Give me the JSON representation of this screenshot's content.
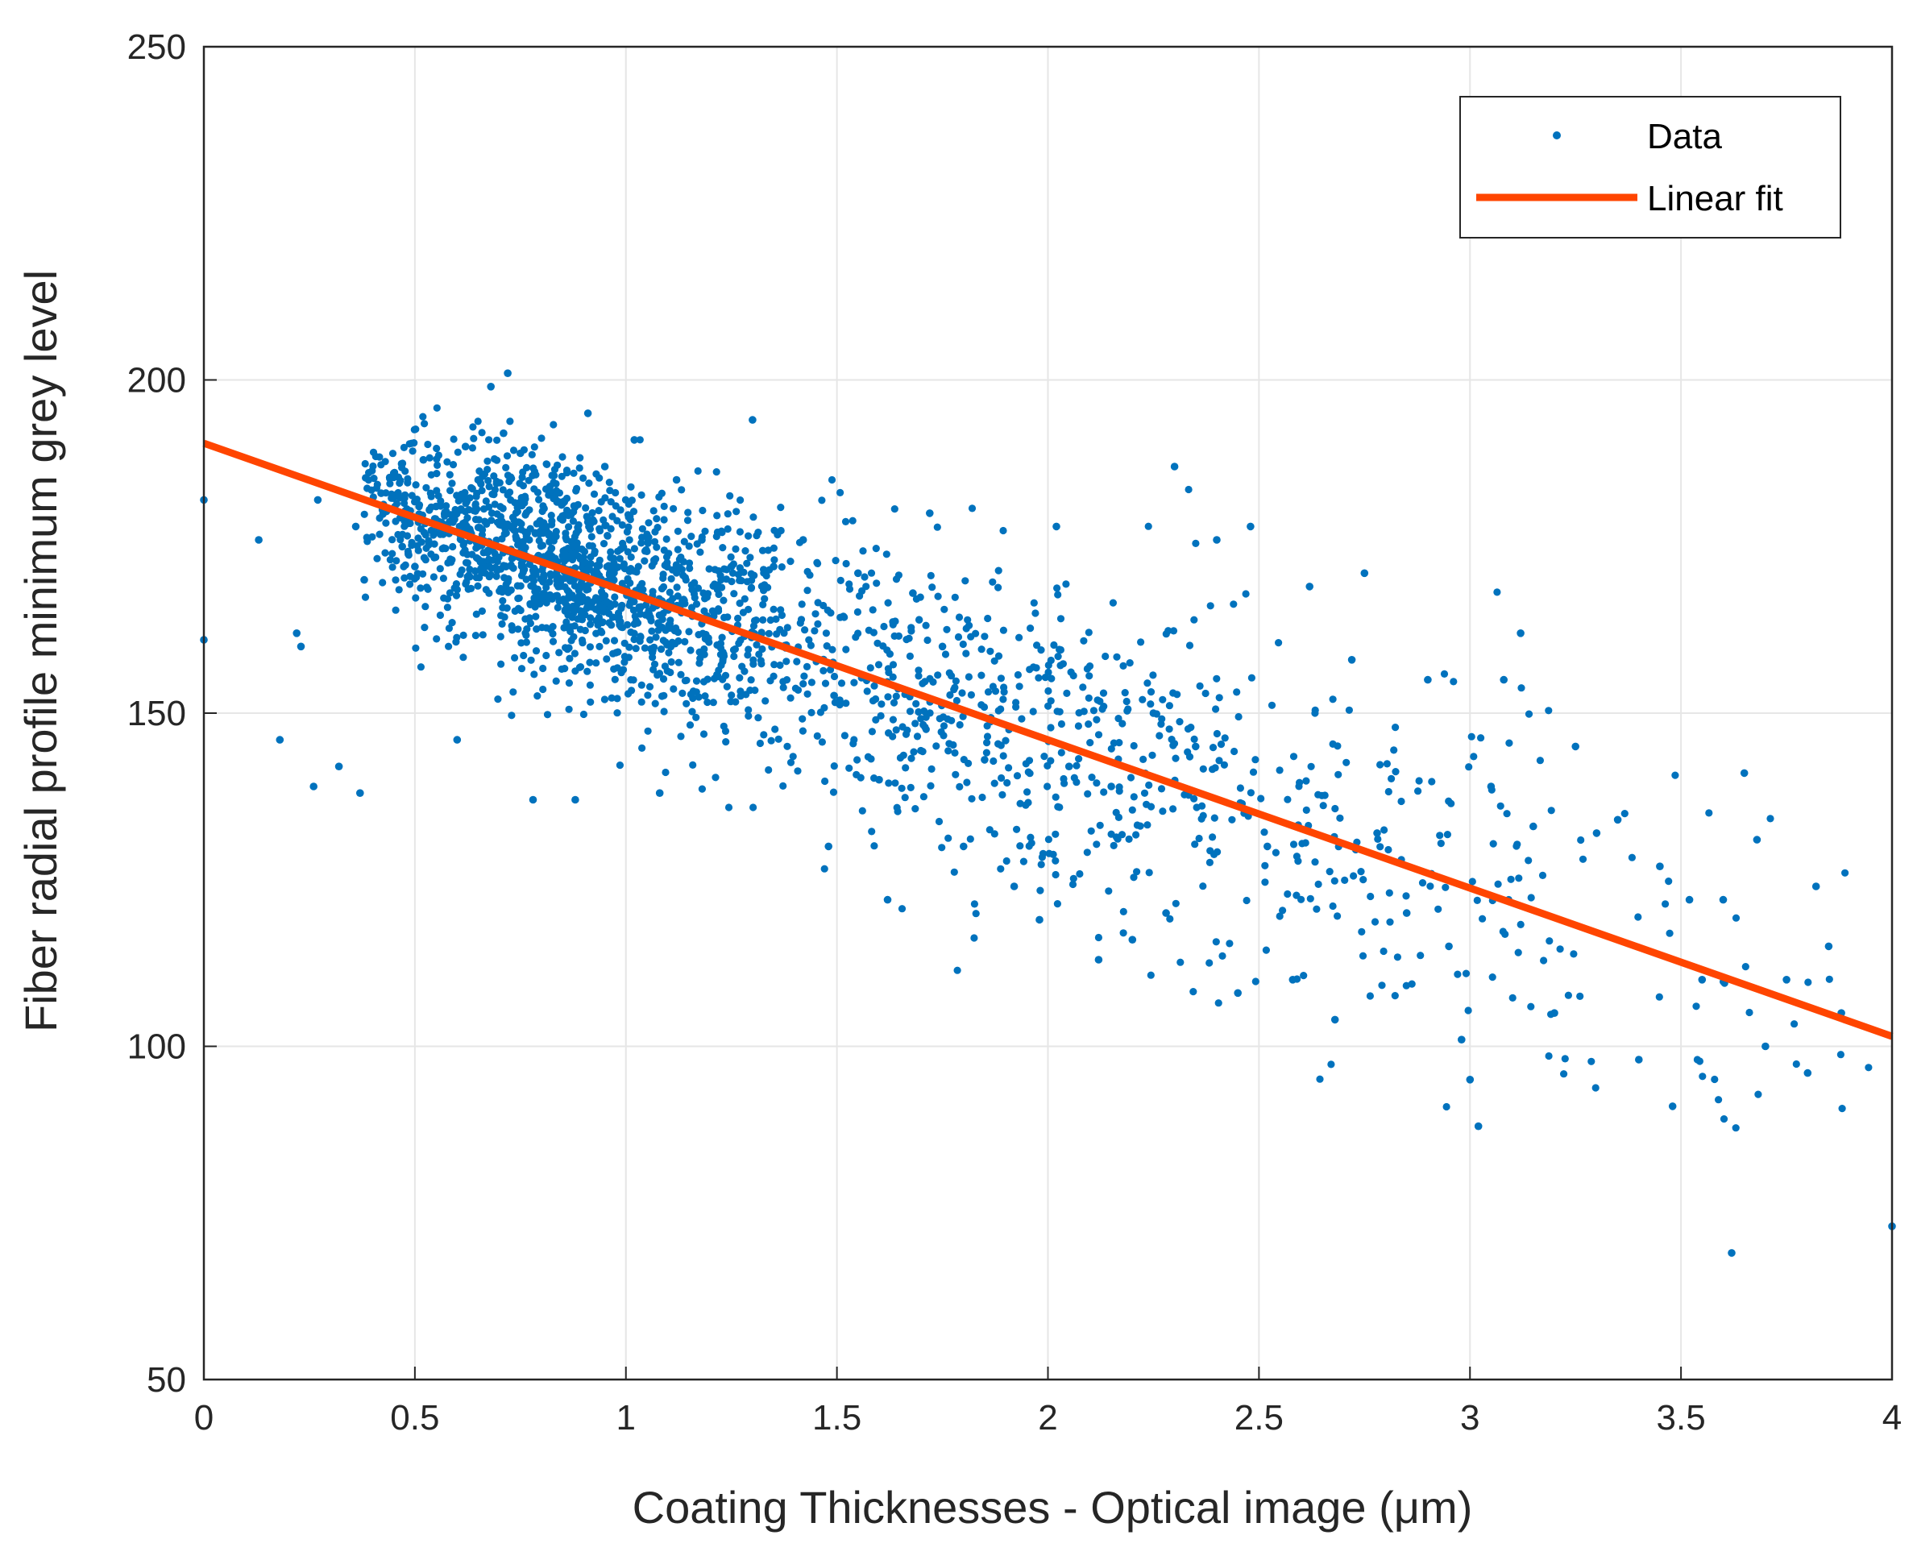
{
  "chart_data": {
    "type": "scatter",
    "title": "",
    "xlabel": "Coating Thicknesses - Optical image",
    "xlabel_unit": "(μm)",
    "ylabel": "Fiber radial profile minimum grey level",
    "xlim": [
      0,
      4
    ],
    "ylim": [
      50,
      250
    ],
    "xticks": [
      0,
      0.5,
      1,
      1.5,
      2,
      2.5,
      3,
      3.5,
      4
    ],
    "xtick_labels": [
      "0",
      "0.5",
      "1",
      "1.5",
      "2",
      "2.5",
      "3",
      "3.5",
      "4"
    ],
    "yticks": [
      50,
      100,
      150,
      200,
      250
    ],
    "ytick_labels": [
      "50",
      "100",
      "150",
      "200",
      "250"
    ],
    "grid": true,
    "legend": {
      "position": "top-right",
      "entries": [
        "Data",
        "Linear fit"
      ]
    },
    "series": [
      {
        "name": "Data",
        "kind": "scatter",
        "color": "#0072BD",
        "points": [
          [
            0,
            182
          ],
          [
            0,
            161
          ],
          [
            0.13,
            176
          ],
          [
            0.18,
            146
          ],
          [
            0.22,
            162
          ],
          [
            0.23,
            160
          ],
          [
            0.26,
            139
          ],
          [
            0.27,
            182
          ],
          [
            0.32,
            142
          ],
          [
            0.37,
            138
          ],
          [
            0.36,
            178
          ],
          [
            0.38,
            170
          ],
          [
            0.42,
            183
          ],
          [
            0.45,
            186
          ],
          [
            0.47,
            175
          ],
          [
            0.5,
            172
          ],
          [
            0.52,
            188
          ],
          [
            0.55,
            181
          ],
          [
            0.6,
            146
          ],
          [
            0.62,
            190
          ],
          [
            0.65,
            185
          ],
          [
            0.68,
            199
          ],
          [
            0.72,
            201
          ],
          [
            0.71,
            192
          ],
          [
            0.75,
            189
          ],
          [
            0.78,
            137
          ],
          [
            0.82,
            184
          ],
          [
            0.85,
            179
          ],
          [
            0.88,
            137
          ],
          [
            0.91,
            195
          ],
          [
            0.95,
            187
          ],
          [
            1.02,
            191
          ],
          [
            1.08,
            138
          ],
          [
            1.12,
            185
          ],
          [
            1.18,
            176
          ],
          [
            1.25,
            172
          ],
          [
            1.3,
            194
          ],
          [
            1.35,
            172
          ],
          [
            1.42,
            176
          ],
          [
            1.48,
            130
          ],
          [
            1.55,
            171
          ],
          [
            1.6,
            140
          ],
          [
            1.62,
            122
          ],
          [
            1.68,
            168
          ],
          [
            1.72,
            180
          ],
          [
            1.75,
            160
          ],
          [
            1.8,
            130
          ],
          [
            1.85,
            143
          ],
          [
            1.92,
            124
          ],
          [
            1.98,
            119
          ],
          [
            2.02,
            178
          ],
          [
            2.05,
            142
          ],
          [
            2.12,
            113
          ],
          [
            2.15,
            139
          ],
          [
            2.2,
            116
          ],
          [
            2.25,
            150
          ],
          [
            2.28,
            120
          ],
          [
            2.3,
            187
          ],
          [
            2.35,
            145
          ],
          [
            2.4,
            176
          ],
          [
            2.45,
            108
          ],
          [
            2.48,
            178
          ],
          [
            2.52,
            130
          ],
          [
            2.58,
            110
          ],
          [
            2.62,
            169
          ],
          [
            2.68,
            104
          ],
          [
            2.72,
            158
          ],
          [
            2.75,
            171
          ],
          [
            2.78,
            132
          ],
          [
            2.85,
            120
          ],
          [
            2.9,
            155
          ],
          [
            2.95,
            115
          ],
          [
            2.98,
            101
          ],
          [
            3.0,
            95
          ],
          [
            3.02,
            88
          ],
          [
            3.05,
            139
          ],
          [
            3.08,
            155
          ],
          [
            3.12,
            162
          ],
          [
            3.15,
            133
          ],
          [
            3.2,
            105
          ],
          [
            3.25,
            145
          ],
          [
            3.3,
            132
          ],
          [
            3.35,
            134
          ],
          [
            3.4,
            98
          ],
          [
            3.45,
            127
          ],
          [
            3.48,
            91
          ],
          [
            3.52,
            122
          ],
          [
            3.55,
            110
          ],
          [
            3.6,
            122
          ],
          [
            3.62,
            69
          ],
          [
            3.65,
            141
          ],
          [
            3.68,
            131
          ],
          [
            3.7,
            100
          ],
          [
            3.75,
            110
          ],
          [
            3.8,
            96
          ],
          [
            3.82,
            124
          ],
          [
            3.85,
            115
          ],
          [
            3.88,
            105
          ],
          [
            4.0,
            73
          ]
        ]
      },
      {
        "name": "Linear fit",
        "kind": "line",
        "color": "#FF4500",
        "x": [
          0,
          4
        ],
        "y": [
          190.5,
          101.5
        ]
      }
    ]
  }
}
